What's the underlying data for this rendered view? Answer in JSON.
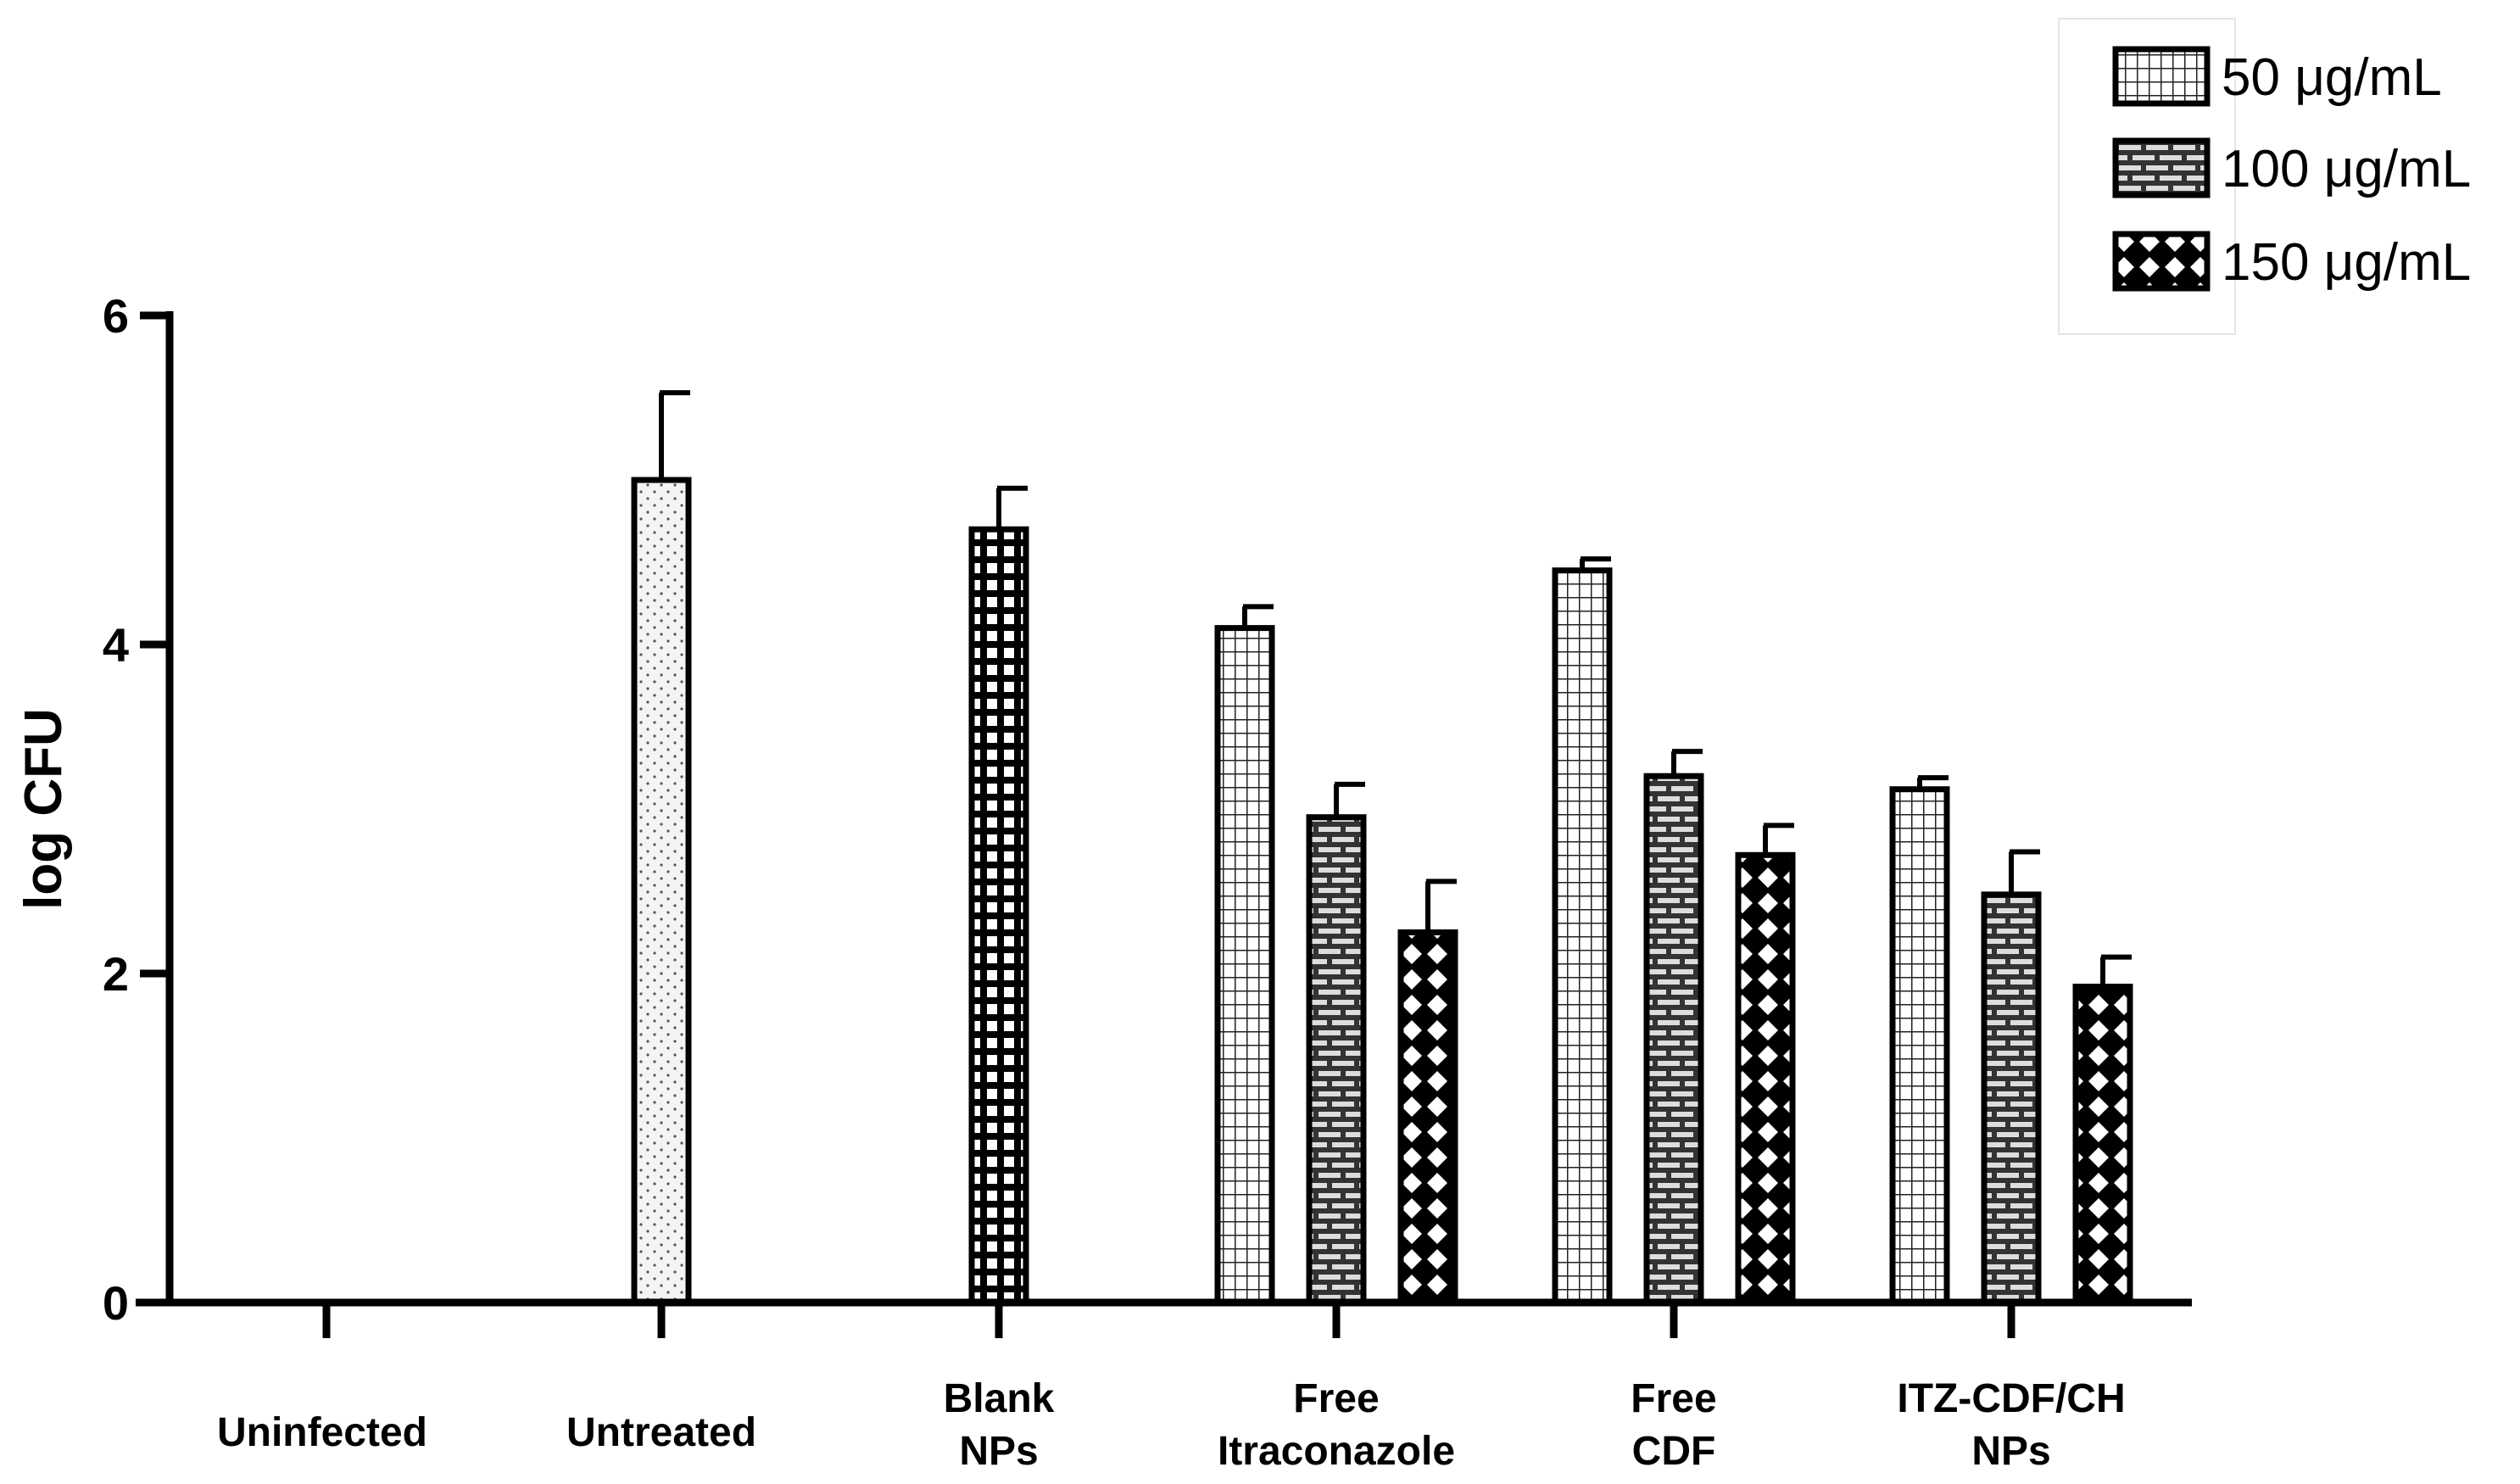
{
  "chart_data": {
    "type": "bar",
    "ylabel": "log CFU",
    "xlabel": "",
    "ylim": [
      0,
      6
    ],
    "yticks": [
      0,
      2,
      4,
      6
    ],
    "categories": [
      {
        "lines": [
          "Uninfected"
        ]
      },
      {
        "lines": [
          "Untreated"
        ]
      },
      {
        "lines": [
          "Blank",
          "NPs"
        ]
      },
      {
        "lines": [
          "Free",
          "Itraconazole"
        ]
      },
      {
        "lines": [
          "Free",
          "CDF"
        ]
      },
      {
        "lines": [
          "ITZ-CDF/CH",
          "NPs"
        ]
      }
    ],
    "bars": [
      {
        "category": 1,
        "series": null,
        "value": 5.0,
        "error": 0.53,
        "pattern": "dots"
      },
      {
        "category": 2,
        "series": null,
        "value": 4.7,
        "error": 0.25,
        "pattern": "checker"
      },
      {
        "category": 3,
        "series": 0,
        "value": 4.1,
        "error": 0.13,
        "pattern": "grid"
      },
      {
        "category": 3,
        "series": 1,
        "value": 2.95,
        "error": 0.2,
        "pattern": "brick"
      },
      {
        "category": 3,
        "series": 2,
        "value": 2.25,
        "error": 0.31,
        "pattern": "diamond"
      },
      {
        "category": 4,
        "series": 0,
        "value": 4.45,
        "error": 0.07,
        "pattern": "grid"
      },
      {
        "category": 4,
        "series": 1,
        "value": 3.2,
        "error": 0.15,
        "pattern": "brick"
      },
      {
        "category": 4,
        "series": 2,
        "value": 2.72,
        "error": 0.18,
        "pattern": "diamond"
      },
      {
        "category": 5,
        "series": 0,
        "value": 3.12,
        "error": 0.07,
        "pattern": "grid"
      },
      {
        "category": 5,
        "series": 1,
        "value": 2.48,
        "error": 0.26,
        "pattern": "brick"
      },
      {
        "category": 5,
        "series": 2,
        "value": 1.92,
        "error": 0.18,
        "pattern": "diamond"
      }
    ],
    "legend": {
      "position": "top-right",
      "entries": [
        {
          "label": "50 μg/mL",
          "pattern": "grid"
        },
        {
          "label": "100 μg/mL",
          "pattern": "brick"
        },
        {
          "label": "150 μg/mL",
          "pattern": "diamond"
        }
      ]
    }
  }
}
